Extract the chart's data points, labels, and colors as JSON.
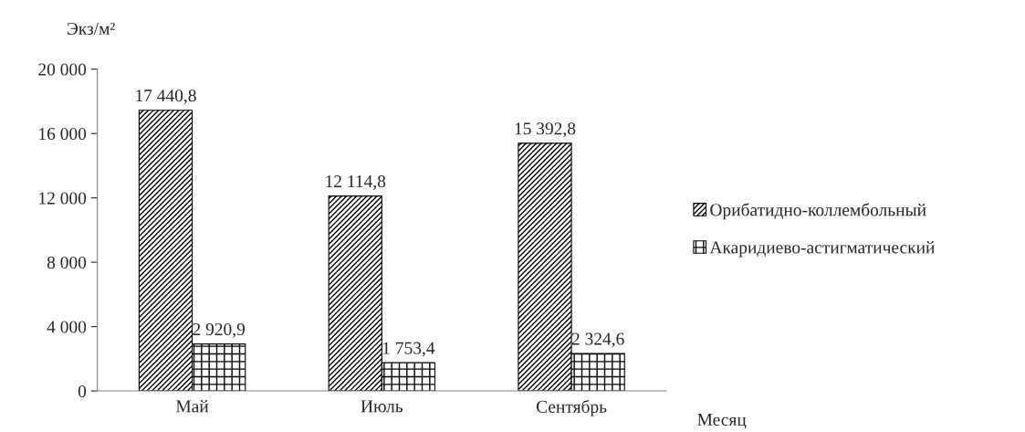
{
  "chart_data": {
    "type": "bar",
    "categories": [
      "Май",
      "Июль",
      "Сентябрь"
    ],
    "series": [
      {
        "name": "Орибатидно-коллембольный",
        "color": "#000000",
        "values": [
          17440.8,
          12114.8,
          15392.8
        ],
        "value_labels": [
          "17 440,8",
          "12 114,8",
          "15 392,8"
        ]
      },
      {
        "name": "Акаридиево-астигматический",
        "color": "#000000",
        "values": [
          2920.9,
          1753.4,
          2324.6
        ],
        "value_labels": [
          "2 920,9",
          "1 753,4",
          "2 324,6"
        ]
      }
    ],
    "ylabel": "Экз/м²",
    "xlabel": "Месяц",
    "ylim": [
      0,
      20000
    ],
    "yticks": [
      {
        "value": 0,
        "label": "0"
      },
      {
        "value": 4000,
        "label": "4 000"
      },
      {
        "value": 8000,
        "label": "8 000"
      },
      {
        "value": 12000,
        "label": "12 000"
      },
      {
        "value": 16000,
        "label": "16 000"
      },
      {
        "value": 20000,
        "label": "20 000"
      }
    ],
    "legend": "right",
    "grid": false
  }
}
